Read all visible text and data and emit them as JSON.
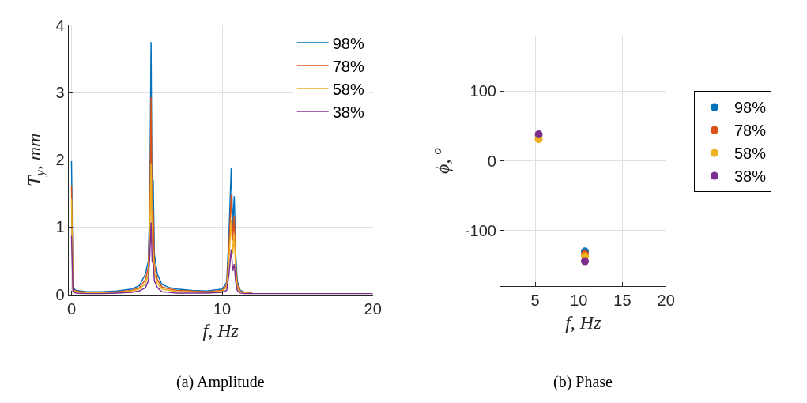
{
  "chart_data": [
    {
      "type": "line",
      "title": "(a) Amplitude",
      "xlabel": "f, Hz",
      "ylabel": "T$_{y}$, mm",
      "x": [
        0,
        0.1,
        0.3,
        1,
        2,
        3,
        4,
        4.5,
        4.9,
        5.1,
        5.2,
        5.28,
        5.35,
        5.42,
        5.5,
        5.7,
        6,
        6.5,
        7,
        8,
        9,
        10,
        10.3,
        10.45,
        10.6,
        10.7,
        10.8,
        10.9,
        11.0,
        11.2,
        11.5,
        12,
        20
      ],
      "series": [
        {
          "name": "98%",
          "color": "#0072bd",
          "values": [
            1.98,
            0.1,
            0.06,
            0.04,
            0.04,
            0.05,
            0.08,
            0.13,
            0.3,
            0.5,
            1.5,
            3.75,
            1.2,
            1.7,
            0.6,
            0.3,
            0.15,
            0.1,
            0.08,
            0.06,
            0.05,
            0.08,
            0.18,
            0.9,
            1.88,
            1.0,
            1.46,
            0.6,
            0.2,
            0.06,
            0.03,
            0.02,
            null
          ]
        },
        {
          "name": "78%",
          "color": "#d95319",
          "values": [
            1.62,
            0.08,
            0.05,
            0.03,
            0.03,
            0.04,
            0.06,
            0.1,
            0.22,
            0.4,
            1.2,
            2.93,
            1.0,
            1.25,
            0.45,
            0.22,
            0.11,
            0.08,
            0.06,
            0.05,
            0.04,
            0.06,
            0.14,
            0.7,
            1.48,
            0.8,
            1.17,
            0.45,
            0.15,
            0.05,
            0.02,
            0.02,
            null
          ]
        },
        {
          "name": "58%",
          "color": "#edb120",
          "values": [
            1.42,
            0.06,
            0.04,
            0.02,
            0.02,
            0.03,
            0.05,
            0.08,
            0.16,
            0.3,
            0.9,
            1.95,
            0.8,
            0.65,
            0.32,
            0.16,
            0.08,
            0.06,
            0.04,
            0.04,
            0.03,
            0.05,
            0.1,
            0.5,
            1.1,
            0.6,
            0.9,
            0.3,
            0.1,
            0.04,
            0.02,
            0.01,
            null
          ]
        },
        {
          "name": "38%",
          "color": "#7e2f8e",
          "values": [
            0.87,
            0.04,
            0.02,
            0.01,
            0.01,
            0.02,
            0.03,
            0.05,
            0.1,
            0.2,
            0.6,
            1.07,
            0.5,
            0.45,
            0.2,
            0.1,
            0.04,
            0.03,
            0.02,
            0.02,
            0.02,
            0.03,
            0.06,
            0.3,
            0.67,
            0.35,
            0.45,
            0.18,
            0.06,
            0.02,
            0.01,
            0.01,
            0.01
          ]
        }
      ],
      "xlim": [
        -0.2,
        20
      ],
      "xticks": [
        0,
        10,
        20
      ],
      "ylim": [
        0,
        4
      ],
      "yticks": [
        0,
        1,
        2,
        3,
        4
      ],
      "grid": true,
      "legend": "top right",
      "marker": "none",
      "line_style": "solid"
    },
    {
      "type": "scatter",
      "title": "(b) Phase",
      "xlabel": "f, Hz",
      "ylabel": "ϕ, $^{o}$",
      "x": [
        5.4,
        10.7
      ],
      "series": [
        {
          "name": "98%",
          "color": "#0072bd",
          "values": [
            null,
            -130
          ]
        },
        {
          "name": "78%",
          "color": "#d95319",
          "values": [
            null,
            -134
          ]
        },
        {
          "name": "58%",
          "color": "#edb120",
          "values": [
            31,
            -137
          ]
        },
        {
          "name": "38%",
          "color": "#7e2f8e",
          "values": [
            38,
            -144
          ]
        }
      ],
      "xlim": [
        1,
        20
      ],
      "xticks": [
        5,
        10,
        15,
        20
      ],
      "ylim": [
        -180,
        180
      ],
      "yticks": [
        -100,
        0,
        100
      ],
      "grid": true,
      "legend": "right",
      "marker": "circle"
    }
  ]
}
